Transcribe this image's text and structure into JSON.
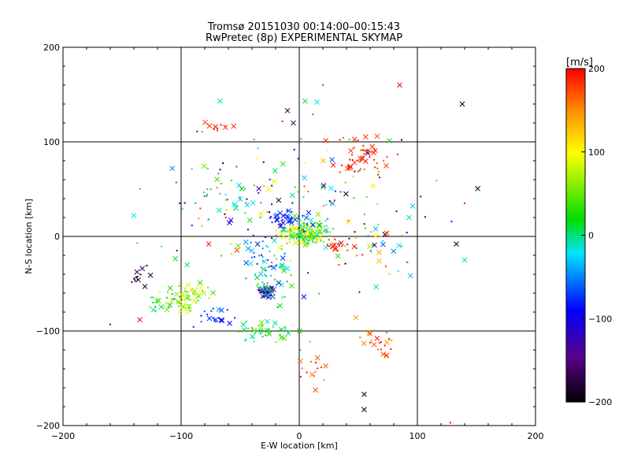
{
  "chart_data": {
    "type": "scatter",
    "title": "Tromsø 20151030 00:14:00–00:15:43",
    "subtitle": "RwPretec (8p) EXPERIMENTAL SKYMAP",
    "xlabel": "E-W location [km]",
    "ylabel": "N-S location [km]",
    "xlim": [
      -200,
      200
    ],
    "ylim": [
      -200,
      200
    ],
    "x_ticks": [
      -200,
      -100,
      0,
      100,
      200
    ],
    "y_ticks": [
      -200,
      -100,
      0,
      100,
      200
    ],
    "grid": true,
    "colorbar": {
      "label": "[m/s]",
      "range": [
        -200,
        200
      ],
      "ticks": [
        200,
        100,
        0,
        -100,
        -200
      ],
      "colormap": "rainbow (black-purple-blue-cyan-green-yellow-red)"
    },
    "marker_types": [
      "x",
      "dot"
    ],
    "clusters": [
      {
        "center": [
          5,
          3
        ],
        "spread": [
          14,
          8
        ],
        "count": 170,
        "v": [
          -30,
          120
        ]
      },
      {
        "center": [
          30,
          -10
        ],
        "spread": [
          7,
          5
        ],
        "count": 22,
        "v": [
          180,
          200
        ]
      },
      {
        "center": [
          -27,
          -58
        ],
        "spread": [
          5,
          5
        ],
        "count": 55,
        "v": [
          -150,
          -110
        ]
      },
      {
        "center": [
          -25,
          -50
        ],
        "spread": [
          12,
          14
        ],
        "count": 40,
        "v": [
          -40,
          40
        ]
      },
      {
        "center": [
          -95,
          -65
        ],
        "spread": [
          13,
          10
        ],
        "count": 75,
        "v": [
          20,
          110
        ]
      },
      {
        "center": [
          -137,
          -42
        ],
        "spread": [
          6,
          9
        ],
        "count": 14,
        "v": [
          -200,
          -150
        ]
      },
      {
        "center": [
          55,
          85
        ],
        "spread": [
          15,
          14
        ],
        "count": 55,
        "v": [
          165,
          200
        ]
      },
      {
        "center": [
          -10,
          18
        ],
        "spread": [
          12,
          10
        ],
        "count": 40,
        "v": [
          -130,
          -60
        ]
      },
      {
        "center": [
          -30,
          -25
        ],
        "spread": [
          15,
          15
        ],
        "count": 35,
        "v": [
          -80,
          -10
        ]
      },
      {
        "center": [
          -25,
          -100
        ],
        "spread": [
          22,
          8
        ],
        "count": 45,
        "v": [
          -20,
          60
        ]
      },
      {
        "center": [
          -75,
          -85
        ],
        "spread": [
          12,
          8
        ],
        "count": 20,
        "v": [
          -90,
          -60
        ]
      },
      {
        "center": [
          10,
          -140
        ],
        "spread": [
          8,
          14
        ],
        "count": 16,
        "v": [
          150,
          200
        ]
      },
      {
        "center": [
          70,
          -110
        ],
        "spread": [
          12,
          10
        ],
        "count": 22,
        "v": [
          130,
          200
        ]
      },
      {
        "center": [
          0,
          30
        ],
        "spread": [
          80,
          60
        ],
        "count": 180,
        "v": [
          -200,
          200
        ]
      },
      {
        "center": [
          -70,
          115
        ],
        "spread": [
          8,
          4
        ],
        "count": 10,
        "v": [
          170,
          200
        ]
      },
      {
        "center": [
          -60,
          40
        ],
        "spread": [
          20,
          20
        ],
        "count": 25,
        "v": [
          -40,
          40
        ]
      },
      {
        "center": [
          -120,
          -70
        ],
        "spread": [
          10,
          8
        ],
        "count": 14,
        "v": [
          -20,
          60
        ]
      },
      {
        "center": [
          60,
          -10
        ],
        "spread": [
          20,
          25
        ],
        "count": 30,
        "v": [
          -200,
          200
        ]
      }
    ],
    "notable_points": [
      {
        "x": 138,
        "y": 140,
        "v": -200,
        "m": "x"
      },
      {
        "x": 55,
        "y": -167,
        "v": -200,
        "m": "x"
      },
      {
        "x": 55,
        "y": -183,
        "v": -200,
        "m": "x"
      },
      {
        "x": 133,
        "y": -8,
        "v": -200,
        "m": "x"
      },
      {
        "x": -67,
        "y": 143,
        "v": 0,
        "m": "x"
      },
      {
        "x": 5,
        "y": 143,
        "v": 10,
        "m": "x"
      },
      {
        "x": 15,
        "y": 142,
        "v": -20,
        "m": "x"
      },
      {
        "x": -140,
        "y": 22,
        "v": -20,
        "m": "x"
      },
      {
        "x": 140,
        "y": -25,
        "v": -10,
        "m": "x"
      },
      {
        "x": 93,
        "y": 20,
        "v": -10,
        "m": "x"
      },
      {
        "x": 85,
        "y": 160,
        "v": 200,
        "m": "x"
      },
      {
        "x": -135,
        "y": -88,
        "v": 200,
        "m": "x"
      },
      {
        "x": -160,
        "y": -93,
        "v": -120,
        "m": "dot"
      },
      {
        "x": 128,
        "y": -197,
        "v": 200,
        "m": "dot"
      },
      {
        "x": -10,
        "y": 133,
        "v": -170,
        "m": "x"
      },
      {
        "x": -5,
        "y": 120,
        "v": -160,
        "m": "x"
      },
      {
        "x": 20,
        "y": 160,
        "v": 180,
        "m": "dot"
      },
      {
        "x": 140,
        "y": 35,
        "v": 200,
        "m": "dot"
      }
    ]
  }
}
